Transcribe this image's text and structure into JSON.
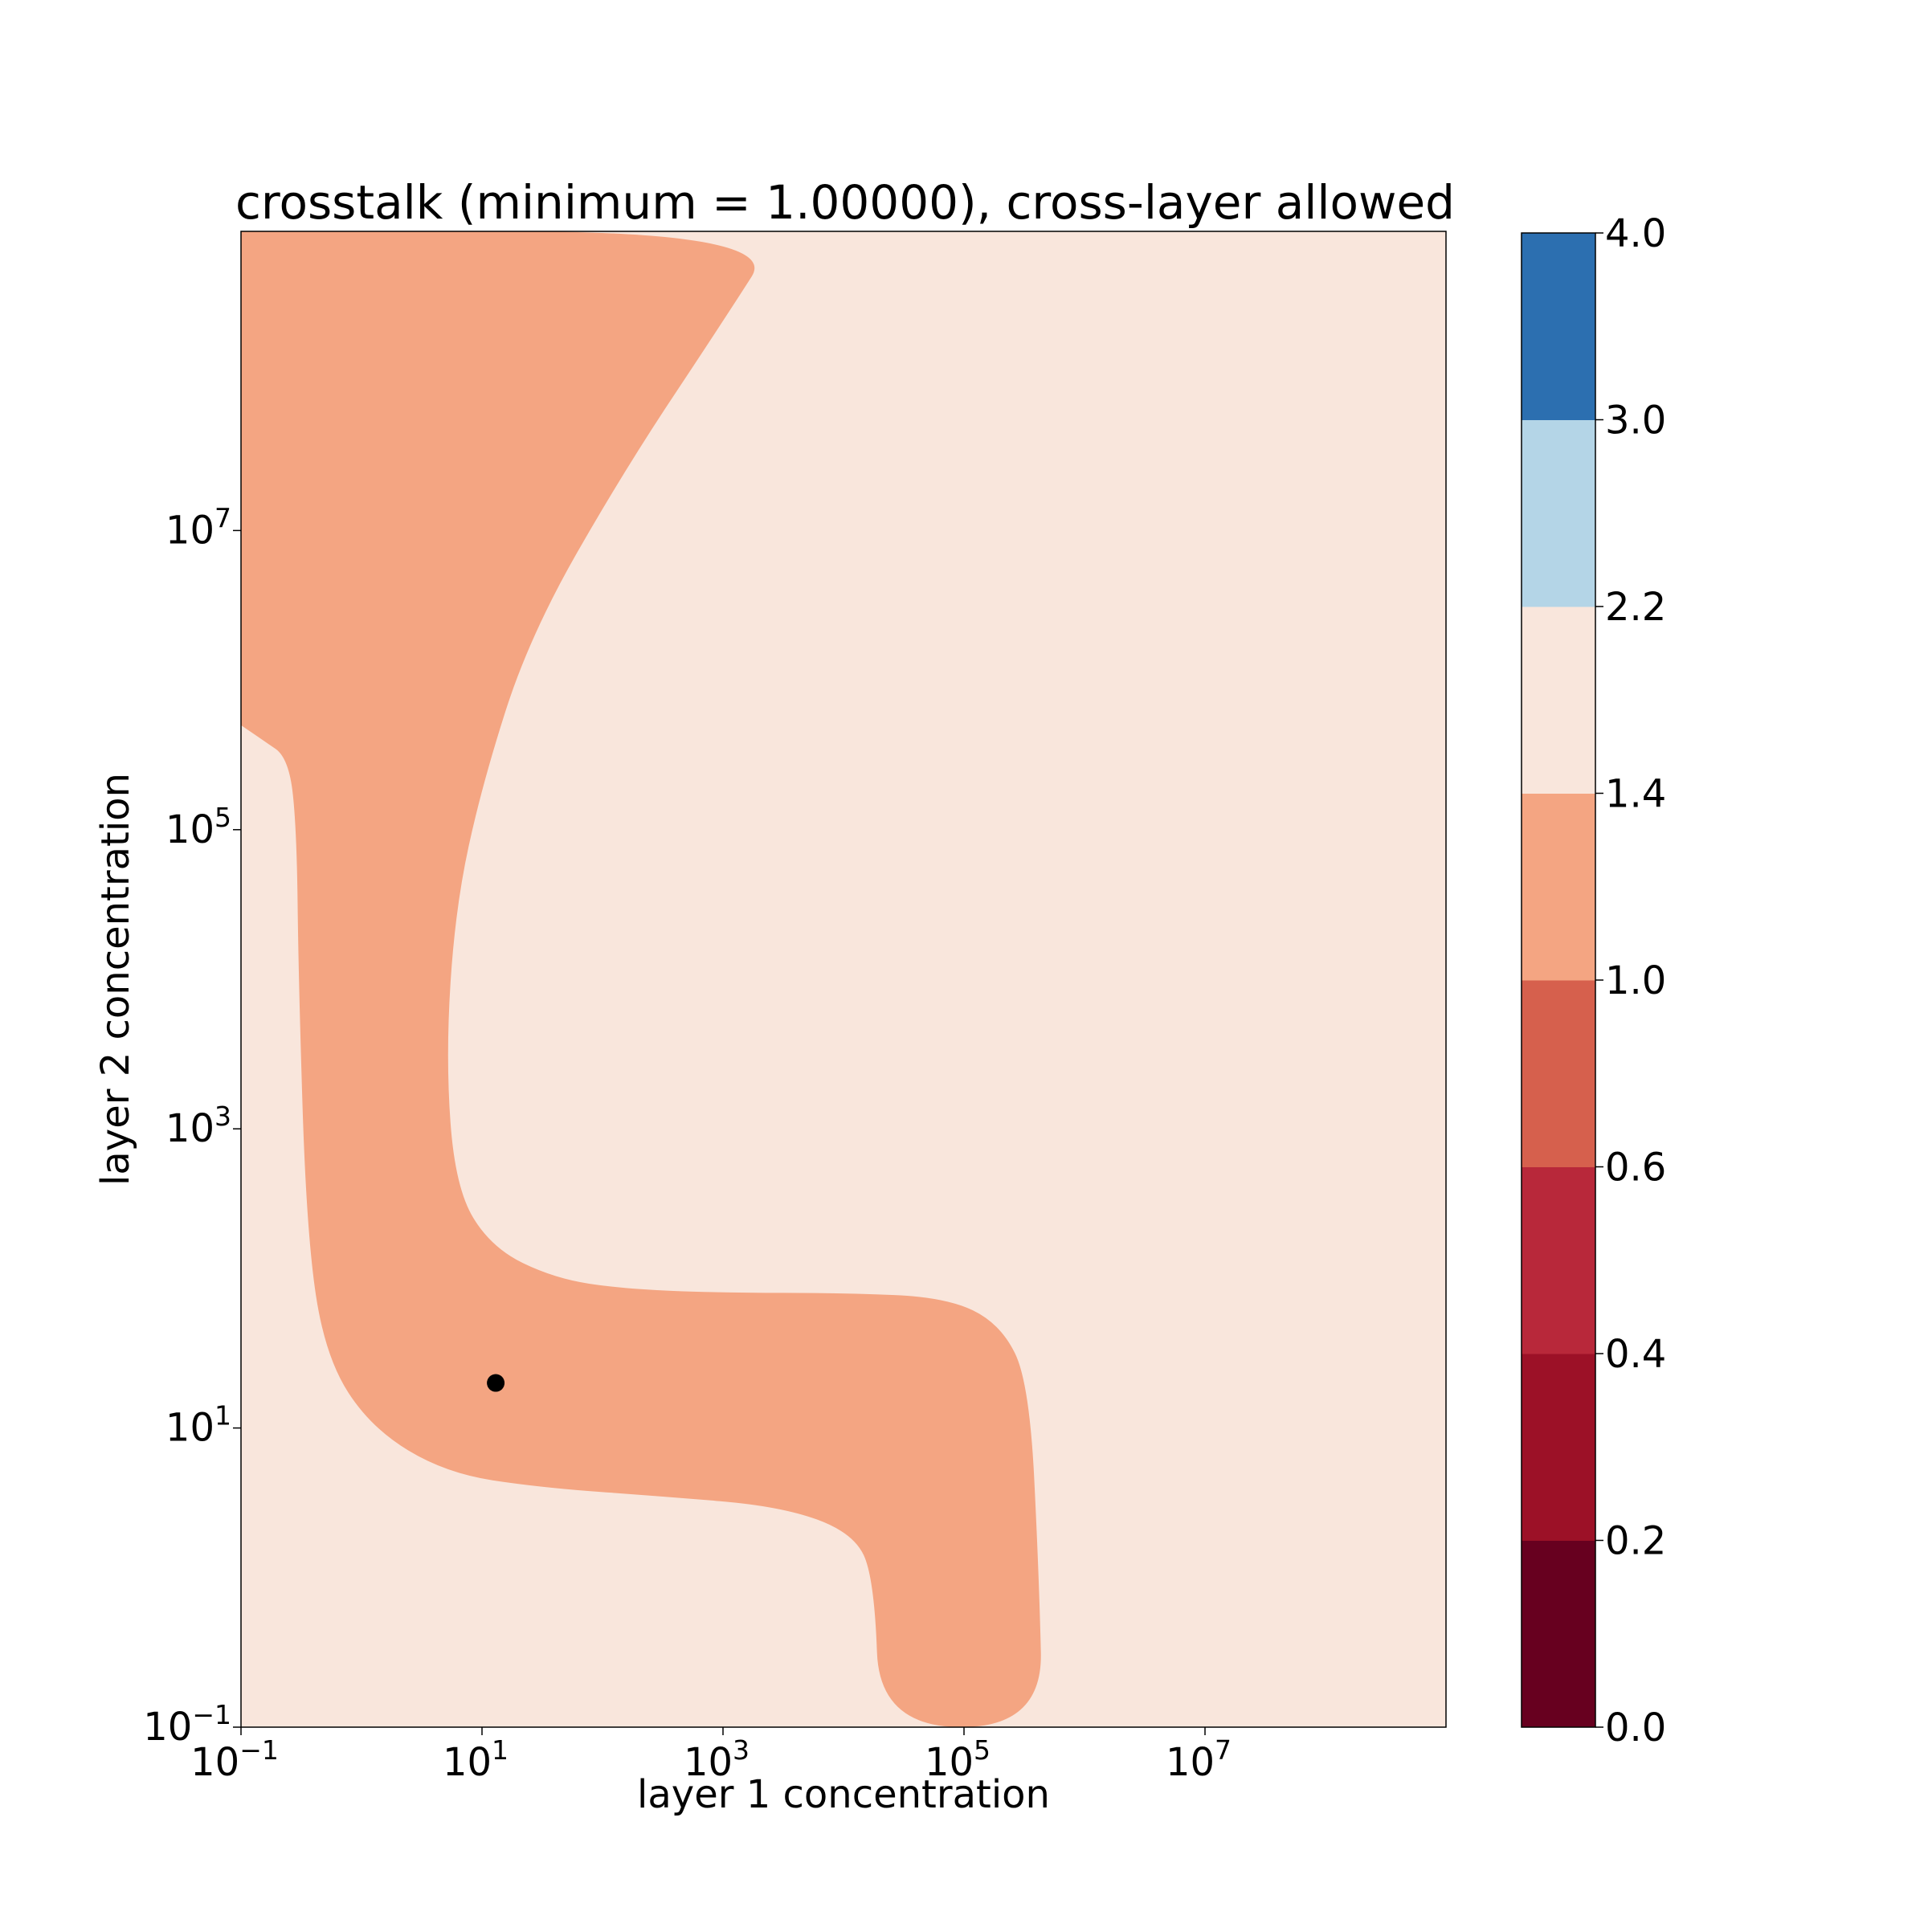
{
  "chart_data": {
    "type": "contour",
    "title": "crosstalk (minimum = 1.00000), cross-layer allowed",
    "xlabel": "layer 1 concentration",
    "ylabel": "layer 2 concentration",
    "xscale": "log",
    "yscale": "log",
    "xlim": [
      0.1,
      1000000000.0
    ],
    "ylim": [
      0.1,
      1000000000.0
    ],
    "x_ticks": [
      {
        "value": 0.1,
        "base": "10",
        "exp": "−1"
      },
      {
        "value": 10,
        "base": "10",
        "exp": "1"
      },
      {
        "value": 1000,
        "base": "10",
        "exp": "3"
      },
      {
        "value": 100000,
        "base": "10",
        "exp": "5"
      },
      {
        "value": 10000000,
        "base": "10",
        "exp": "7"
      }
    ],
    "y_ticks": [
      {
        "value": 0.1,
        "base": "10",
        "exp": "−1"
      },
      {
        "value": 10,
        "base": "10",
        "exp": "1"
      },
      {
        "value": 1000,
        "base": "10",
        "exp": "3"
      },
      {
        "value": 100000,
        "base": "10",
        "exp": "5"
      },
      {
        "value": 10000000,
        "base": "10",
        "exp": "7"
      }
    ],
    "colorbar": {
      "levels": [
        0.0,
        0.2,
        0.4,
        0.6,
        1.0,
        1.4,
        2.2,
        3.0,
        4.0
      ],
      "tick_labels": [
        "0.0",
        "0.2",
        "0.4",
        "0.6",
        "1.0",
        "1.4",
        "2.2",
        "3.0",
        "4.0"
      ],
      "colors": [
        "#67001f",
        "#9c1127",
        "#b8283a",
        "#d6604d",
        "#f4a582",
        "#f9e6dc",
        "#b4d5e7",
        "#2c6fb0"
      ]
    },
    "regions": [
      {
        "range": [
          1.0,
          1.4
        ],
        "color": "#f4a582",
        "boundary": [
          [
            0.1,
            1000000000.0
          ],
          [
            3000,
            1000000000.0
          ],
          [
            1000.0,
            250000000.0
          ],
          [
            150,
            25000000.0
          ],
          [
            25,
            2000000.0
          ],
          [
            10,
            200000.0
          ],
          [
            6,
            30000.0
          ],
          [
            5,
            3000
          ],
          [
            6,
            400
          ],
          [
            12,
            160
          ],
          [
            40,
            100
          ],
          [
            150,
            85
          ],
          [
            1000,
            80
          ],
          [
            10000,
            80
          ],
          [
            70000,
            75
          ],
          [
            200000,
            50
          ],
          [
            350000,
            20
          ],
          [
            420000,
            1
          ],
          [
            450000,
            0.1
          ],
          [
            20000,
            0.1
          ],
          [
            18000,
            1
          ],
          [
            12000,
            2
          ],
          [
            3000,
            3
          ],
          [
            300,
            3.5
          ],
          [
            30,
            4
          ],
          [
            5,
            5
          ],
          [
            1.2,
            10
          ],
          [
            0.5,
            30
          ],
          [
            0.35,
            200
          ],
          [
            0.3,
            10000.0
          ],
          [
            0.29,
            100000.0
          ],
          [
            0.25,
            300000.0
          ],
          [
            0.15,
            400000.0
          ],
          [
            0.1,
            500000.0
          ]
        ]
      },
      {
        "range": [
          1.4,
          2.2
        ],
        "color": "#f9e6dc",
        "description": "rest of plot area"
      }
    ],
    "marker": {
      "x": 13,
      "y": 20,
      "color": "#000000"
    }
  }
}
